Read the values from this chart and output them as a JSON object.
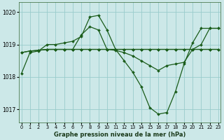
{
  "background_color": "#cce8e8",
  "grid_color": "#99cccc",
  "line_color": "#1a5c1a",
  "xlabel": "Graphe pression niveau de la mer (hPa)",
  "ylim": [
    1016.6,
    1020.3
  ],
  "yticks": [
    1017,
    1018,
    1019,
    1020
  ],
  "xlim": [
    -0.3,
    23.3
  ],
  "xticks": [
    0,
    1,
    2,
    3,
    4,
    5,
    6,
    7,
    8,
    9,
    10,
    11,
    12,
    13,
    14,
    15,
    16,
    17,
    18,
    19,
    20,
    21,
    22,
    23
  ],
  "series": [
    {
      "x": [
        0,
        1,
        2,
        3,
        4,
        5,
        6,
        7,
        8,
        9,
        10,
        11,
        12,
        13,
        14,
        15,
        16,
        17,
        18,
        19,
        20,
        21,
        22,
        23
      ],
      "y": [
        1018.1,
        1018.75,
        1018.8,
        1019.0,
        1019.0,
        1019.05,
        1019.1,
        1019.25,
        1019.85,
        1019.9,
        1019.45,
        1018.85,
        1018.5,
        1018.15,
        1017.7,
        1017.05,
        1016.85,
        1016.9,
        1017.55,
        1018.4,
        1019.05,
        1019.5,
        1019.5,
        1019.5
      ]
    },
    {
      "x": [
        0,
        1,
        2,
        3,
        4,
        5,
        6,
        7,
        8,
        9,
        10,
        11,
        12,
        13,
        14,
        15,
        16,
        17,
        18,
        19,
        20,
        21,
        22,
        23
      ],
      "y": [
        1018.75,
        1018.8,
        1018.82,
        1018.85,
        1018.85,
        1018.85,
        1018.85,
        1019.3,
        1019.55,
        1019.45,
        1018.85,
        1018.85,
        1018.85,
        1018.85,
        1018.85,
        1018.85,
        1018.85,
        1018.85,
        1018.85,
        1018.85,
        1018.85,
        1019.0,
        1019.5,
        1019.5
      ]
    },
    {
      "x": [
        0,
        1,
        2,
        3,
        4,
        5,
        6,
        7,
        8,
        9,
        10,
        11,
        12,
        13,
        14,
        15,
        16,
        17,
        18,
        19,
        20,
        21,
        22,
        23
      ],
      "y": [
        1018.75,
        1018.8,
        1018.82,
        1018.85,
        1018.85,
        1018.85,
        1018.85,
        1018.85,
        1018.85,
        1018.85,
        1018.85,
        1018.85,
        1018.85,
        1018.85,
        1018.85,
        1018.85,
        1018.85,
        1018.85,
        1018.85,
        1018.85,
        1018.85,
        1018.85,
        1018.85,
        1018.85
      ]
    },
    {
      "x": [
        2,
        3,
        4,
        5,
        6,
        7,
        8,
        9,
        10,
        11,
        12,
        13,
        14,
        15,
        16,
        17,
        18,
        19,
        20,
        21,
        22,
        23
      ],
      "y": [
        1018.82,
        1018.85,
        1018.85,
        1018.85,
        1018.85,
        1018.85,
        1018.85,
        1018.85,
        1018.85,
        1018.82,
        1018.75,
        1018.65,
        1018.5,
        1018.35,
        1018.2,
        1018.35,
        1018.4,
        1018.45,
        1018.85,
        1018.85,
        1018.85,
        1018.85
      ]
    }
  ]
}
